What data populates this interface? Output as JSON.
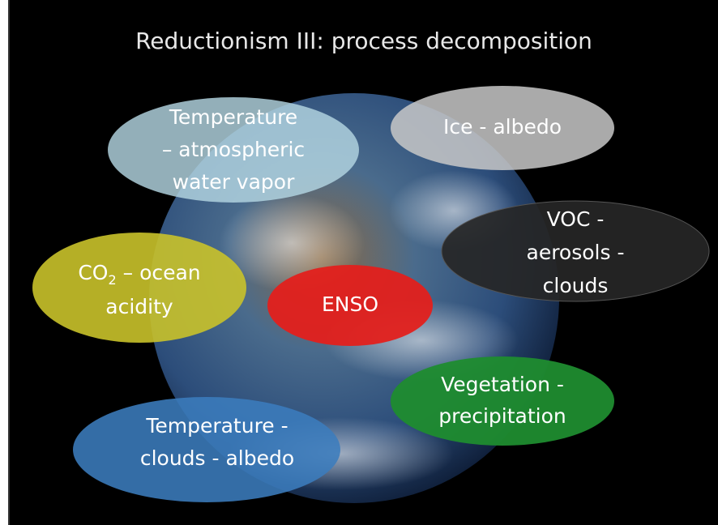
{
  "title": "Reductionism III: process decomposition",
  "nodes": [
    {
      "lines": [
        "Temperature",
        "– atmospheric",
        "water vapor"
      ]
    },
    {
      "lines": [
        "Ice - albedo"
      ]
    },
    {
      "lines": [
        "VOC -",
        "aerosols -",
        "clouds"
      ]
    },
    {
      "co2_line": {
        "base": "CO",
        "sub": "2",
        "rest": " – ocean"
      },
      "lines": [
        "acidity"
      ]
    },
    {
      "lines": [
        "ENSO"
      ]
    },
    {
      "lines": [
        "Vegetation -",
        "precipitation"
      ]
    },
    {
      "lines": [
        "Temperature -",
        "clouds - albedo"
      ]
    }
  ]
}
